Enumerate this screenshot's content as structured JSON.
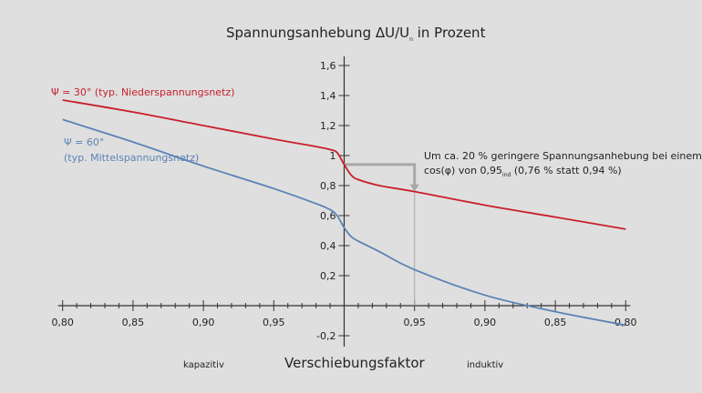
{
  "chart_data": {
    "type": "line",
    "title": "Spannungsanhebung ΔU/U",
    "title_sub": "n",
    "title_suffix": " in Prozent",
    "xlabel": "Verschiebungsfaktor",
    "x_left_label": "kapazitiv",
    "x_right_label": "induktiv",
    "x_note": "x positions: negative = capacitive (1 - cosφ), positive = inductive (1 - cosφ)",
    "xlim": [
      -0.2,
      0.2
    ],
    "ylim": [
      -0.2,
      1.6
    ],
    "x_ticks": [
      {
        "pos": -0.2,
        "label": "0,80"
      },
      {
        "pos": -0.15,
        "label": "0,85"
      },
      {
        "pos": -0.1,
        "label": "0,90"
      },
      {
        "pos": -0.05,
        "label": "0,95"
      },
      {
        "pos": 0.05,
        "label": "0,95"
      },
      {
        "pos": 0.1,
        "label": "0,90"
      },
      {
        "pos": 0.15,
        "label": "0,85"
      },
      {
        "pos": 0.2,
        "label": "0,80"
      }
    ],
    "y_ticks": [
      {
        "value": 1.6,
        "label": "1,6"
      },
      {
        "value": 1.4,
        "label": "1,4"
      },
      {
        "value": 1.2,
        "label": "1,2"
      },
      {
        "value": 1.0,
        "label": "1"
      },
      {
        "value": 0.8,
        "label": "0,8"
      },
      {
        "value": 0.6,
        "label": "0,6"
      },
      {
        "value": 0.4,
        "label": "0,4"
      },
      {
        "value": 0.2,
        "label": "0,2"
      },
      {
        "value": -0.2,
        "label": "-0,2"
      }
    ],
    "series": [
      {
        "name": "Ψ = 30° (typ. Niederspannungsnetz)",
        "color": "#c8202c",
        "x": [
          -0.2,
          -0.15,
          -0.1,
          -0.05,
          -0.02,
          -0.01,
          -0.005,
          0,
          0.005,
          0.01,
          0.025,
          0.05,
          0.1,
          0.15,
          0.2
        ],
        "y": [
          1.37,
          1.29,
          1.2,
          1.11,
          1.06,
          1.04,
          1.02,
          0.94,
          0.87,
          0.84,
          0.8,
          0.76,
          0.67,
          0.59,
          0.51
        ]
      },
      {
        "name": "Ψ = 60°",
        "name2": "(typ. Mittelspannungsnetz)",
        "color": "#5b83b5",
        "x": [
          -0.2,
          -0.15,
          -0.1,
          -0.05,
          -0.02,
          -0.01,
          -0.005,
          0,
          0.005,
          0.01,
          0.025,
          0.05,
          0.1,
          0.15,
          0.2
        ],
        "y": [
          1.24,
          1.09,
          0.93,
          0.78,
          0.68,
          0.64,
          0.6,
          0.52,
          0.46,
          0.43,
          0.36,
          0.24,
          0.07,
          -0.04,
          -0.13
        ]
      }
    ],
    "annotation": {
      "line1": "Um ca. 20 % geringere Spannungsanhebung bei einem",
      "line2_a": "cos(φ) von 0,95",
      "line2_sub": "ind",
      "line2_b": " (0,76 % statt 0,94 %)",
      "from": {
        "x": 0,
        "y": 0.94
      },
      "to": {
        "x": 0.05,
        "y": 0.76
      }
    }
  }
}
